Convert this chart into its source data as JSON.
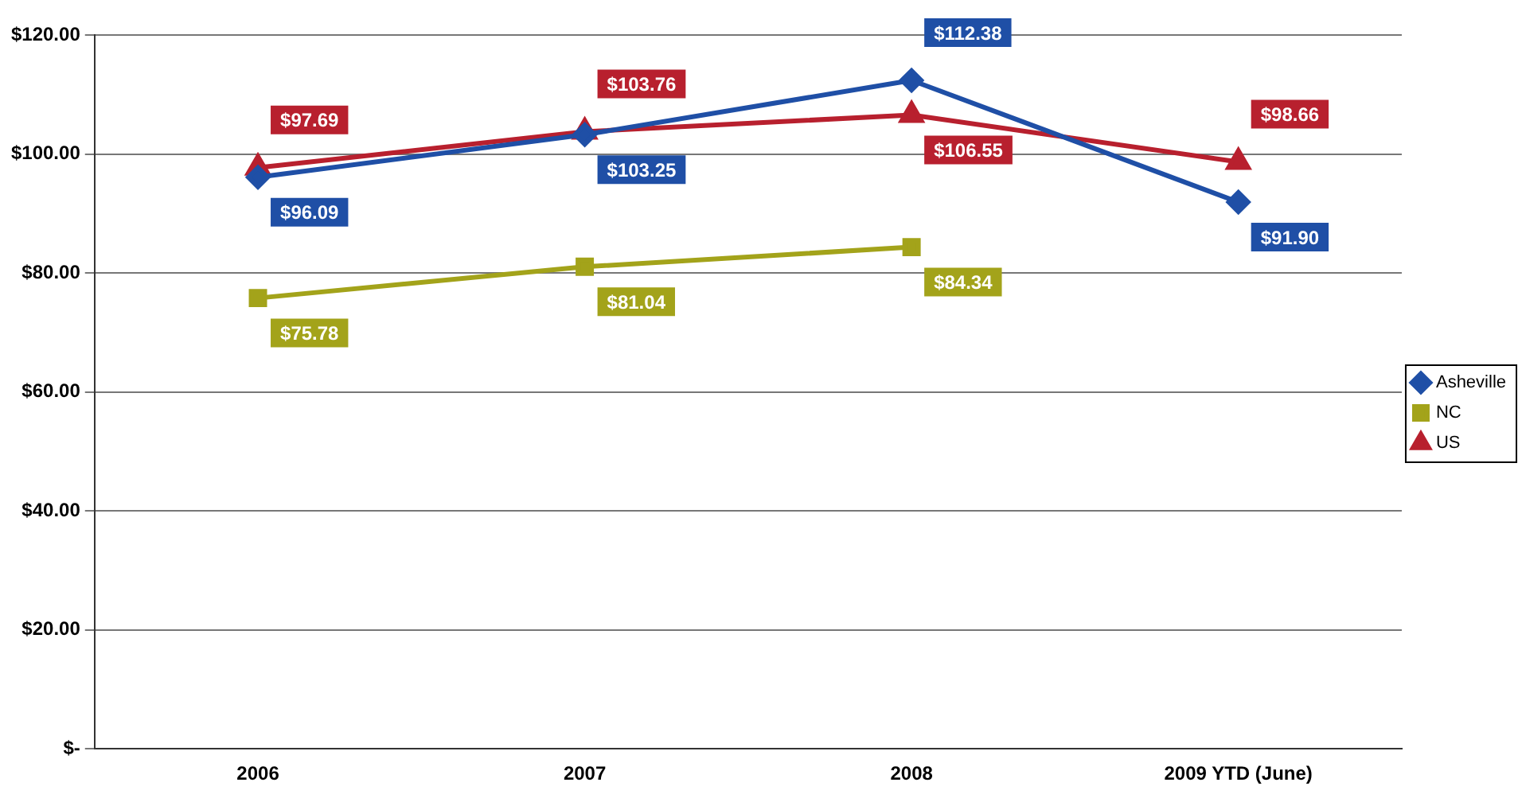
{
  "chart_data": {
    "type": "line",
    "categories": [
      "2006",
      "2007",
      "2008",
      "2009 YTD (June)"
    ],
    "series": [
      {
        "name": "Asheville",
        "color": "#1f4fa6",
        "marker": "diamond",
        "values": [
          96.09,
          103.25,
          112.38,
          91.9
        ],
        "value_labels": [
          "$96.09",
          "$103.25",
          "$112.38",
          "$91.90"
        ]
      },
      {
        "name": "NC",
        "color": "#a3a31a",
        "marker": "square",
        "values": [
          75.78,
          81.04,
          84.34,
          null
        ],
        "value_labels": [
          "$75.78",
          "$81.04",
          "$84.34",
          null
        ]
      },
      {
        "name": "US",
        "color": "#b8202e",
        "marker": "triangle",
        "values": [
          97.69,
          103.76,
          106.55,
          98.66
        ],
        "value_labels": [
          "$97.69",
          "$103.76",
          "$106.55",
          "$98.66"
        ]
      }
    ],
    "ylim": [
      0,
      120
    ],
    "yticks": [
      {
        "value": 0,
        "label": "$-"
      },
      {
        "value": 20,
        "label": "$20.00"
      },
      {
        "value": 40,
        "label": "$40.00"
      },
      {
        "value": 60,
        "label": "$60.00"
      },
      {
        "value": 80,
        "label": "$80.00"
      },
      {
        "value": 100,
        "label": "$100.00"
      },
      {
        "value": 120,
        "label": "$120.00"
      }
    ],
    "grid": "y",
    "legend": "right"
  }
}
